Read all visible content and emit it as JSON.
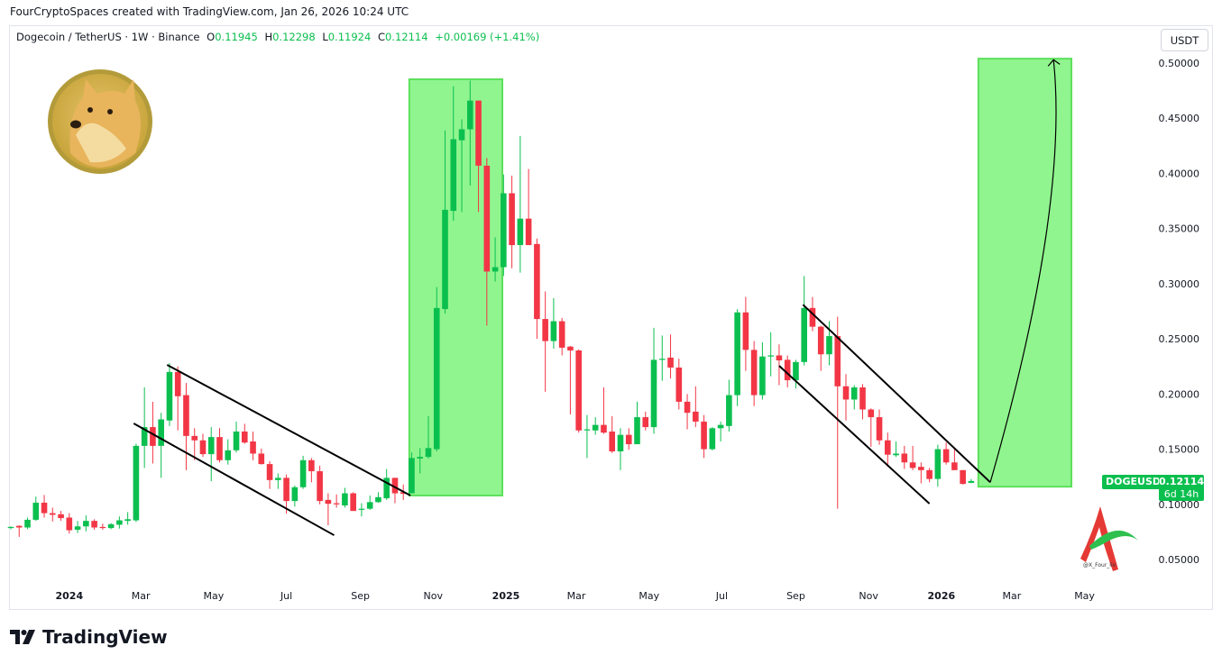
{
  "credit": "FourCryptoSpaces created with TradingView.com, Jan 26, 2026 10:24 UTC",
  "legend": {
    "symbol": "Dogecoin / TetherUS · 1W · Binance",
    "o_label": "O",
    "o": "0.11945",
    "h_label": "H",
    "h": "0.12298",
    "l_label": "L",
    "l": "0.11924",
    "c_label": "C",
    "c": "0.12114",
    "change": "+0.00169 (+1.41%)"
  },
  "currency_button": "USDT",
  "price_label": {
    "symbol": "DOGEUSDT",
    "price": "0.12114",
    "countdown": "6d 14h"
  },
  "watermark_text": "@X_Four_liv",
  "brand": "TradingView",
  "colors": {
    "up": "#0bbf4f",
    "down": "#f23645",
    "zone": "#90f58f",
    "zone_border": "#5de05c"
  },
  "chart_data": {
    "type": "candlestick",
    "interval": "1W",
    "columns": [
      "week",
      "open",
      "high",
      "low",
      "close"
    ],
    "candles": [
      [
        "2023-11-13",
        0.0785,
        0.08,
        0.0775,
        0.0795
      ],
      [
        "2023-11-20",
        0.0805,
        0.081,
        0.0705,
        0.079
      ],
      [
        "2023-11-27",
        0.079,
        0.088,
        0.0775,
        0.086
      ],
      [
        "2023-12-04",
        0.086,
        0.107,
        0.085,
        0.1015
      ],
      [
        "2023-12-11",
        0.1015,
        0.1085,
        0.088,
        0.092
      ],
      [
        "2023-12-18",
        0.092,
        0.097,
        0.0845,
        0.0905
      ],
      [
        "2023-12-25",
        0.091,
        0.094,
        0.085,
        0.0875
      ],
      [
        "2024-01-01",
        0.088,
        0.092,
        0.0735,
        0.0765
      ],
      [
        "2024-01-08",
        0.077,
        0.085,
        0.074,
        0.08
      ],
      [
        "2024-01-15",
        0.08,
        0.09,
        0.0755,
        0.085
      ],
      [
        "2024-01-22",
        0.085,
        0.0865,
        0.077,
        0.079
      ],
      [
        "2024-01-29",
        0.0795,
        0.0825,
        0.077,
        0.0785
      ],
      [
        "2024-02-05",
        0.0785,
        0.083,
        0.0775,
        0.082
      ],
      [
        "2024-02-12",
        0.0815,
        0.089,
        0.078,
        0.0855
      ],
      [
        "2024-02-19",
        0.085,
        0.093,
        0.0815,
        0.0865
      ],
      [
        "2024-02-26",
        0.0855,
        0.155,
        0.084,
        0.153
      ],
      [
        "2024-03-04",
        0.153,
        0.206,
        0.133,
        0.17
      ],
      [
        "2024-03-11",
        0.17,
        0.193,
        0.137,
        0.153
      ],
      [
        "2024-03-18",
        0.153,
        0.183,
        0.124,
        0.177
      ],
      [
        "2024-03-25",
        0.176,
        0.228,
        0.171,
        0.22
      ],
      [
        "2024-04-01",
        0.22,
        0.225,
        0.167,
        0.198
      ],
      [
        "2024-04-08",
        0.199,
        0.21,
        0.131,
        0.162
      ],
      [
        "2024-04-15",
        0.162,
        0.169,
        0.14,
        0.158
      ],
      [
        "2024-04-22",
        0.158,
        0.164,
        0.143,
        0.1455
      ],
      [
        "2024-04-29",
        0.1455,
        0.17,
        0.121,
        0.161
      ],
      [
        "2024-05-06",
        0.161,
        0.169,
        0.138,
        0.14
      ],
      [
        "2024-05-13",
        0.14,
        0.159,
        0.136,
        0.149
      ],
      [
        "2024-05-20",
        0.149,
        0.175,
        0.147,
        0.166
      ],
      [
        "2024-05-27",
        0.166,
        0.173,
        0.155,
        0.156
      ],
      [
        "2024-06-03",
        0.157,
        0.166,
        0.14,
        0.146
      ],
      [
        "2024-06-10",
        0.146,
        0.1505,
        0.136,
        0.1365
      ],
      [
        "2024-06-17",
        0.1365,
        0.139,
        0.114,
        0.122
      ],
      [
        "2024-06-24",
        0.122,
        0.128,
        0.114,
        0.124
      ],
      [
        "2024-07-01",
        0.124,
        0.127,
        0.0915,
        0.103
      ],
      [
        "2024-07-08",
        0.103,
        0.117,
        0.098,
        0.1155
      ],
      [
        "2024-07-15",
        0.1155,
        0.144,
        0.114,
        0.14
      ],
      [
        "2024-07-22",
        0.14,
        0.142,
        0.12,
        0.13
      ],
      [
        "2024-07-29",
        0.13,
        0.135,
        0.1,
        0.103
      ],
      [
        "2024-08-05",
        0.104,
        0.11,
        0.081,
        0.1005
      ],
      [
        "2024-08-12",
        0.101,
        0.109,
        0.097,
        0.1
      ],
      [
        "2024-08-19",
        0.099,
        0.115,
        0.097,
        0.11
      ],
      [
        "2024-08-26",
        0.11,
        0.111,
        0.094,
        0.094
      ],
      [
        "2024-09-02",
        0.095,
        0.101,
        0.089,
        0.096
      ],
      [
        "2024-09-09",
        0.096,
        0.108,
        0.095,
        0.102
      ],
      [
        "2024-09-16",
        0.102,
        0.111,
        0.1015,
        0.1065
      ],
      [
        "2024-09-23",
        0.1055,
        0.132,
        0.104,
        0.124
      ],
      [
        "2024-09-30",
        0.124,
        0.124,
        0.101,
        0.11
      ],
      [
        "2024-10-07",
        0.111,
        0.118,
        0.104,
        0.1095
      ],
      [
        "2024-10-14",
        0.11,
        0.147,
        0.11,
        0.142
      ],
      [
        "2024-10-21",
        0.1415,
        0.151,
        0.128,
        0.143
      ],
      [
        "2024-10-28",
        0.143,
        0.18,
        0.1415,
        0.151
      ],
      [
        "2024-11-04",
        0.15,
        0.297,
        0.148,
        0.278
      ],
      [
        "2024-11-11",
        0.277,
        0.439,
        0.273,
        0.367
      ],
      [
        "2024-11-18",
        0.366,
        0.479,
        0.357,
        0.431
      ],
      [
        "2024-11-25",
        0.43,
        0.449,
        0.365,
        0.44
      ],
      [
        "2024-12-02",
        0.44,
        0.484,
        0.389,
        0.466
      ],
      [
        "2024-12-09",
        0.466,
        0.466,
        0.365,
        0.407
      ],
      [
        "2024-12-16",
        0.407,
        0.414,
        0.262,
        0.311
      ],
      [
        "2024-12-23",
        0.311,
        0.342,
        0.302,
        0.315
      ],
      [
        "2024-12-30",
        0.315,
        0.399,
        0.307,
        0.382
      ],
      [
        "2025-01-06",
        0.382,
        0.398,
        0.314,
        0.335
      ],
      [
        "2025-01-13",
        0.335,
        0.434,
        0.31,
        0.359
      ],
      [
        "2025-01-20",
        0.359,
        0.404,
        0.335,
        0.335
      ],
      [
        "2025-01-27",
        0.336,
        0.341,
        0.25,
        0.268
      ],
      [
        "2025-02-03",
        0.268,
        0.293,
        0.202,
        0.248
      ],
      [
        "2025-02-10",
        0.248,
        0.287,
        0.241,
        0.266
      ],
      [
        "2025-02-17",
        0.266,
        0.269,
        0.235,
        0.242
      ],
      [
        "2025-02-24",
        0.243,
        0.2435,
        0.1815,
        0.2395
      ],
      [
        "2025-03-03",
        0.2395,
        0.2405,
        0.165,
        0.167
      ],
      [
        "2025-03-10",
        0.167,
        0.181,
        0.142,
        0.168
      ],
      [
        "2025-03-17",
        0.167,
        0.179,
        0.163,
        0.172
      ],
      [
        "2025-03-24",
        0.172,
        0.206,
        0.164,
        0.165
      ],
      [
        "2025-03-31",
        0.166,
        0.18,
        0.1465,
        0.148
      ],
      [
        "2025-04-07",
        0.148,
        0.169,
        0.131,
        0.163
      ],
      [
        "2025-04-14",
        0.163,
        0.169,
        0.1495,
        0.1545
      ],
      [
        "2025-04-21",
        0.1545,
        0.193,
        0.1545,
        0.179
      ],
      [
        "2025-04-28",
        0.179,
        0.184,
        0.167,
        0.17
      ],
      [
        "2025-05-05",
        0.17,
        0.26,
        0.164,
        0.231
      ],
      [
        "2025-05-12",
        0.231,
        0.253,
        0.212,
        0.232
      ],
      [
        "2025-05-19",
        0.233,
        0.254,
        0.214,
        0.224
      ],
      [
        "2025-05-26",
        0.224,
        0.232,
        0.186,
        0.193
      ],
      [
        "2025-06-02",
        0.193,
        0.2,
        0.168,
        0.183
      ],
      [
        "2025-06-09",
        0.184,
        0.207,
        0.17,
        0.175
      ],
      [
        "2025-06-16",
        0.175,
        0.181,
        0.142,
        0.15
      ],
      [
        "2025-06-23",
        0.15,
        0.17,
        0.149,
        0.169
      ],
      [
        "2025-06-30",
        0.169,
        0.175,
        0.157,
        0.172
      ],
      [
        "2025-07-07",
        0.171,
        0.213,
        0.166,
        0.199
      ],
      [
        "2025-07-14",
        0.199,
        0.277,
        0.189,
        0.274
      ],
      [
        "2025-07-21",
        0.274,
        0.288,
        0.221,
        0.24
      ],
      [
        "2025-07-28",
        0.24,
        0.248,
        0.189,
        0.199
      ],
      [
        "2025-08-04",
        0.199,
        0.247,
        0.195,
        0.234
      ],
      [
        "2025-08-11",
        0.234,
        0.256,
        0.216,
        0.235
      ],
      [
        "2025-08-18",
        0.235,
        0.245,
        0.208,
        0.2305
      ],
      [
        "2025-08-25",
        0.231,
        0.235,
        0.206,
        0.2125
      ],
      [
        "2025-09-01",
        0.2125,
        0.231,
        0.205,
        0.229
      ],
      [
        "2025-09-08",
        0.229,
        0.307,
        0.226,
        0.278
      ],
      [
        "2025-09-15",
        0.278,
        0.288,
        0.257,
        0.261
      ],
      [
        "2025-09-22",
        0.261,
        0.262,
        0.221,
        0.236
      ],
      [
        "2025-09-29",
        0.236,
        0.266,
        0.226,
        0.2525
      ],
      [
        "2025-10-06",
        0.2525,
        0.27,
        0.096,
        0.207
      ],
      [
        "2025-10-13",
        0.207,
        0.218,
        0.176,
        0.195
      ],
      [
        "2025-10-20",
        0.195,
        0.208,
        0.186,
        0.206
      ],
      [
        "2025-10-27",
        0.206,
        0.209,
        0.177,
        0.186
      ],
      [
        "2025-11-03",
        0.186,
        0.187,
        0.152,
        0.179
      ],
      [
        "2025-11-10",
        0.179,
        0.186,
        0.154,
        0.158
      ],
      [
        "2025-11-17",
        0.158,
        0.165,
        0.134,
        0.145
      ],
      [
        "2025-11-24",
        0.1445,
        0.157,
        0.143,
        0.146
      ],
      [
        "2025-12-01",
        0.146,
        0.153,
        0.132,
        0.138
      ],
      [
        "2025-12-08",
        0.138,
        0.153,
        0.131,
        0.133
      ],
      [
        "2025-12-15",
        0.134,
        0.138,
        0.119,
        0.131
      ],
      [
        "2025-12-22",
        0.131,
        0.133,
        0.12,
        0.123
      ],
      [
        "2025-12-29",
        0.123,
        0.154,
        0.116,
        0.15
      ],
      [
        "2026-01-05",
        0.15,
        0.156,
        0.136,
        0.138
      ],
      [
        "2026-01-12",
        0.138,
        0.151,
        0.131,
        0.131
      ],
      [
        "2026-01-19",
        0.131,
        0.131,
        0.118,
        0.1185
      ],
      [
        "2026-01-26",
        0.11945,
        0.12298,
        0.11924,
        0.12114
      ]
    ],
    "y_ticks": [
      "0.50000",
      "0.45000",
      "0.40000",
      "0.35000",
      "0.30000",
      "0.25000",
      "0.20000",
      "0.15000",
      "0.10000",
      "0.05000"
    ],
    "x_ticks": [
      {
        "label": "2024",
        "date": "2024-01-01",
        "bold": true
      },
      {
        "label": "Mar",
        "date": "2024-03-01"
      },
      {
        "label": "May",
        "date": "2024-05-01"
      },
      {
        "label": "Jul",
        "date": "2024-07-01"
      },
      {
        "label": "Sep",
        "date": "2024-09-01"
      },
      {
        "label": "Nov",
        "date": "2024-11-01"
      },
      {
        "label": "2025",
        "date": "2025-01-01",
        "bold": true
      },
      {
        "label": "Mar",
        "date": "2025-03-01"
      },
      {
        "label": "May",
        "date": "2025-05-01"
      },
      {
        "label": "Jul",
        "date": "2025-07-01"
      },
      {
        "label": "Sep",
        "date": "2025-09-01"
      },
      {
        "label": "Nov",
        "date": "2025-11-01"
      },
      {
        "label": "2026",
        "date": "2026-01-01",
        "bold": true
      },
      {
        "label": "Mar",
        "date": "2026-03-01"
      },
      {
        "label": "May",
        "date": "2026-05-01"
      }
    ],
    "scale": "linear",
    "grid": false,
    "annotations": {
      "zones": [
        {
          "from": "2024-10-12",
          "to": "2024-12-29",
          "low": 0.108,
          "high": 0.4853
        },
        {
          "from": "2026-02-01",
          "to": "2026-04-20",
          "low": 0.116,
          "high": 0.504
        }
      ],
      "trendlines": [
        {
          "p1": [
            "2024-03-23",
            0.2264
          ],
          "p2": [
            "2024-10-13",
            0.108
          ]
        },
        {
          "p1": [
            "2024-02-24",
            0.1733
          ],
          "p2": [
            "2024-08-10",
            0.072
          ]
        },
        {
          "p1": [
            "2025-09-07",
            0.281
          ],
          "p2": [
            "2026-02-11",
            0.12
          ]
        },
        {
          "p1": [
            "2025-08-18",
            0.2256
          ],
          "p2": [
            "2025-12-22",
            0.1006
          ]
        }
      ],
      "projection_arrow": {
        "start": [
          "2026-02-11",
          0.12
        ],
        "control": [
          "2026-04-18",
          0.369
        ],
        "end": [
          "2026-04-05",
          0.503
        ]
      }
    }
  }
}
